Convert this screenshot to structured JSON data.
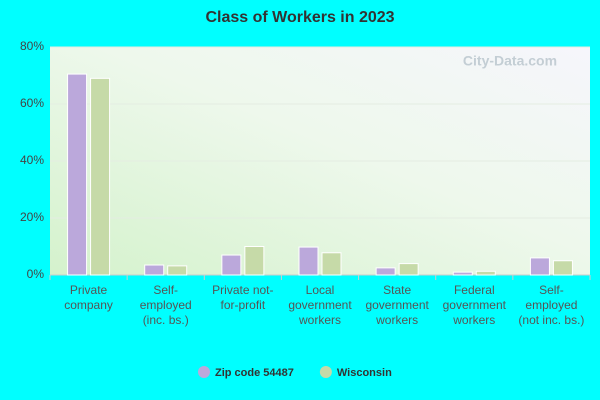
{
  "chart_data": {
    "type": "bar",
    "title": "Class of Workers in 2023",
    "watermark": "City-Data.com",
    "categories": [
      "Private company",
      "Self-employed (inc. bs.)",
      "Private not-for-profit",
      "Local government workers",
      "State government workers",
      "Federal government workers",
      "Self-employed (not inc. bs.)"
    ],
    "series": [
      {
        "name": "Zip code 54487",
        "color": "#bba8db",
        "values": [
          70.5,
          3.5,
          7,
          9.8,
          2.5,
          1,
          6
        ]
      },
      {
        "name": "Wisconsin",
        "color": "#c6daa8",
        "values": [
          69,
          3.2,
          10,
          7.8,
          4,
          1.3,
          5
        ]
      }
    ],
    "ylim": [
      0,
      80
    ],
    "yticks": [
      {
        "value": 0,
        "label": "0%"
      },
      {
        "value": 20,
        "label": "20%"
      },
      {
        "value": 40,
        "label": "40%"
      },
      {
        "value": 60,
        "label": "60%"
      },
      {
        "value": 80,
        "label": "80%"
      }
    ],
    "grid": true
  }
}
